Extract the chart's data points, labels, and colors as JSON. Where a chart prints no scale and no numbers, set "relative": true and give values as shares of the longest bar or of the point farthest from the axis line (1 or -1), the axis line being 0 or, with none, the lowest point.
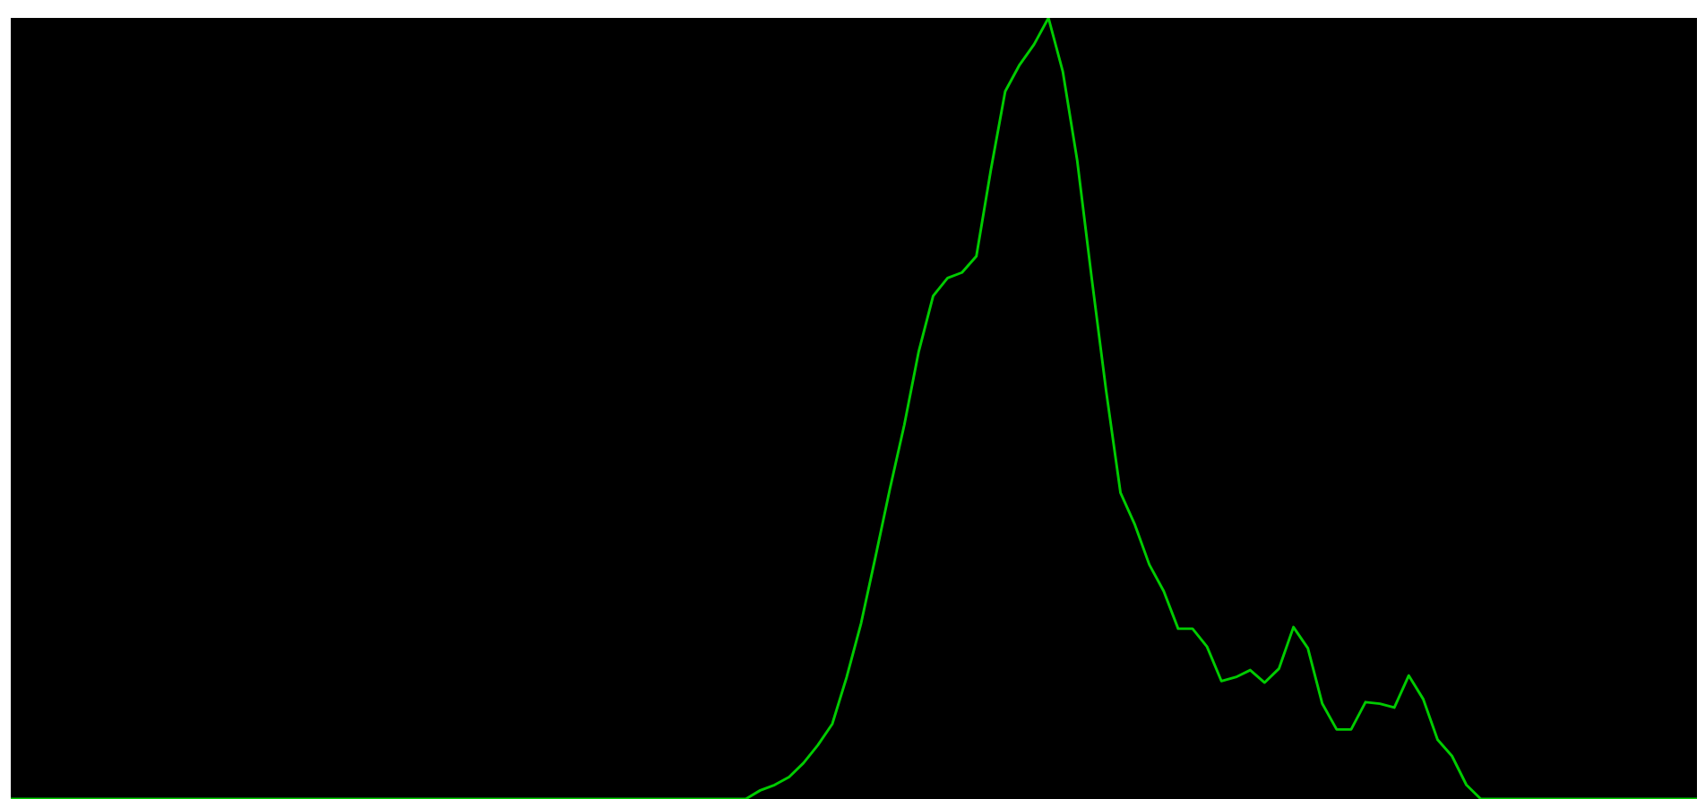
{
  "chart_data": {
    "type": "line",
    "relative": true,
    "categories": [
      null,
      null,
      null,
      null,
      null,
      null,
      null,
      null,
      null,
      null,
      null,
      null,
      null,
      null,
      null,
      null,
      null,
      null,
      null,
      null,
      null,
      null,
      null,
      null,
      null,
      null,
      null,
      null,
      null,
      null,
      null,
      null,
      null,
      null,
      null,
      null,
      null,
      null,
      null,
      null,
      null,
      null,
      null,
      null,
      null,
      null,
      null,
      null,
      null,
      null,
      null,
      null,
      null,
      null,
      null,
      null,
      null,
      null,
      null,
      null,
      null,
      null,
      null,
      null,
      null,
      null,
      null,
      null,
      null,
      null,
      null,
      null,
      null,
      null,
      null,
      null,
      null,
      null,
      null,
      null,
      null,
      null,
      null,
      null,
      null,
      null,
      null,
      null,
      null,
      null,
      null,
      null,
      null,
      null,
      null,
      null,
      null,
      null,
      null,
      null,
      null,
      null,
      null,
      null,
      null,
      null,
      null,
      null,
      null,
      null,
      null,
      null,
      null,
      null,
      null,
      null,
      null,
      null
    ],
    "series": [
      {
        "color": "#00cc00",
        "values": [
          0,
          0,
          0,
          0,
          0,
          0,
          0,
          0,
          0,
          0,
          0,
          0,
          0,
          0,
          0,
          0,
          0,
          0,
          0,
          0,
          0,
          0,
          0,
          0,
          0,
          0,
          0,
          0,
          0,
          0,
          0,
          0,
          0,
          0,
          0,
          0,
          0,
          0,
          0,
          0,
          0,
          0,
          0,
          0,
          0,
          0,
          0,
          0,
          0,
          0,
          0,
          0,
          0.011,
          0.018,
          0.028,
          0.046,
          0.069,
          0.096,
          0.156,
          0.225,
          0.31,
          0.397,
          0.479,
          0.573,
          0.644,
          0.667,
          0.674,
          0.695,
          0.805,
          0.906,
          0.94,
          0.966,
          1,
          0.931,
          0.817,
          0.667,
          0.523,
          0.392,
          0.351,
          0.3,
          0.266,
          0.218,
          0.218,
          0.195,
          0.151,
          0.156,
          0.165,
          0.149,
          0.167,
          0.22,
          0.193,
          0.122,
          0.089,
          0.089,
          0.124,
          0.122,
          0.117,
          0.158,
          0.128,
          0.076,
          0.055,
          0.018,
          0,
          0,
          0,
          0,
          0,
          0,
          0,
          0,
          0,
          0,
          0,
          0,
          0,
          0,
          0,
          0
        ]
      }
    ]
  }
}
